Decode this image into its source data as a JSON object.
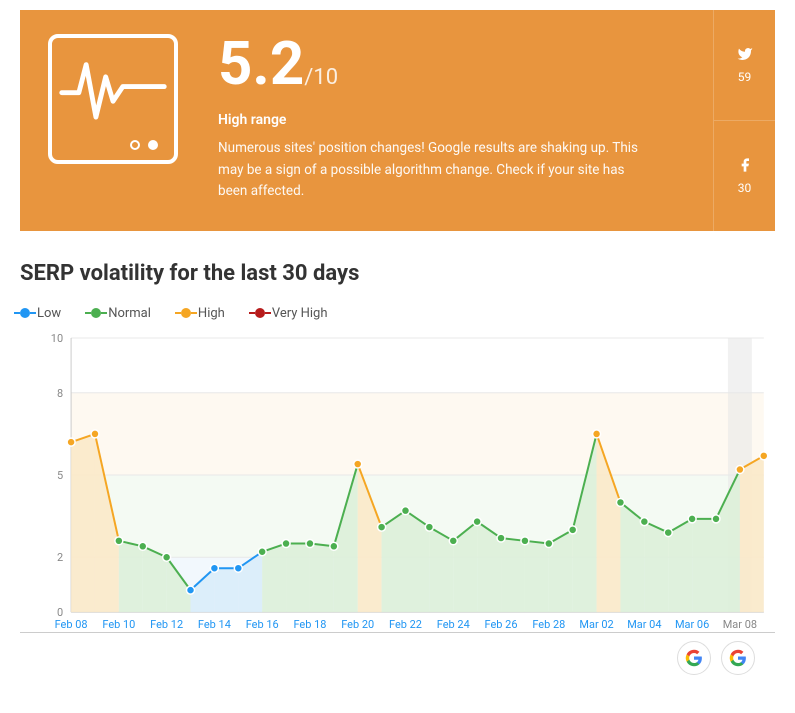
{
  "hero": {
    "score": "5.2",
    "max": "/10",
    "range_label": "High range",
    "description": "Numerous sites' position changes! Google results are shaking up. This may be a sign of a possible algorithm change. Check if your site has been affected.",
    "bg_color": "#e8953e",
    "social": {
      "twitter_count": "59",
      "facebook_count": "30"
    }
  },
  "chart": {
    "title": "SERP volatility for the last 30 days",
    "type": "line-area",
    "legend": [
      {
        "label": "Low",
        "color": "#2196f3"
      },
      {
        "label": "Normal",
        "color": "#4caf50"
      },
      {
        "label": "High",
        "color": "#f5a623"
      },
      {
        "label": "Very High",
        "color": "#b71c1c"
      }
    ],
    "ylim": [
      0,
      10
    ],
    "yticks": [
      0,
      2,
      5,
      8,
      10
    ],
    "ybands": [
      {
        "label": "Low",
        "from": 0,
        "to": 2,
        "fill": "#e6f2fb"
      },
      {
        "label": "Normal",
        "from": 2,
        "to": 5,
        "fill": "#e9f5e8"
      },
      {
        "label": "High",
        "from": 5,
        "to": 8,
        "fill": "#fdf3e3"
      },
      {
        "label": "Very High",
        "from": 8,
        "to": 10,
        "fill": "#ffffff"
      }
    ],
    "x_labels": [
      "Feb 08",
      "Feb 10",
      "Feb 12",
      "Feb 14",
      "Feb 16",
      "Feb 18",
      "Feb 20",
      "Feb 22",
      "Feb 24",
      "Feb 26",
      "Feb 28",
      "Mar 02",
      "Mar 04",
      "Mar 06",
      "Mar 08"
    ],
    "today_label": "Mar 08",
    "points": [
      {
        "x": "Feb 08",
        "y": 6.2,
        "cat": "High"
      },
      {
        "x": "Feb 09",
        "y": 6.5,
        "cat": "High"
      },
      {
        "x": "Feb 10",
        "y": 2.6,
        "cat": "Normal"
      },
      {
        "x": "Feb 11",
        "y": 2.4,
        "cat": "Normal"
      },
      {
        "x": "Feb 12",
        "y": 2.0,
        "cat": "Normal"
      },
      {
        "x": "Feb 13",
        "y": 0.8,
        "cat": "Low"
      },
      {
        "x": "Feb 14",
        "y": 1.6,
        "cat": "Low"
      },
      {
        "x": "Feb 15",
        "y": 1.6,
        "cat": "Low"
      },
      {
        "x": "Feb 16",
        "y": 2.2,
        "cat": "Normal"
      },
      {
        "x": "Feb 17",
        "y": 2.5,
        "cat": "Normal"
      },
      {
        "x": "Feb 18",
        "y": 2.5,
        "cat": "Normal"
      },
      {
        "x": "Feb 19",
        "y": 2.4,
        "cat": "Normal"
      },
      {
        "x": "Feb 20",
        "y": 5.4,
        "cat": "High"
      },
      {
        "x": "Feb 21",
        "y": 3.1,
        "cat": "Normal"
      },
      {
        "x": "Feb 22",
        "y": 3.7,
        "cat": "Normal"
      },
      {
        "x": "Feb 23",
        "y": 3.1,
        "cat": "Normal"
      },
      {
        "x": "Feb 24",
        "y": 2.6,
        "cat": "Normal"
      },
      {
        "x": "Feb 25",
        "y": 3.3,
        "cat": "Normal"
      },
      {
        "x": "Feb 26",
        "y": 2.7,
        "cat": "Normal"
      },
      {
        "x": "Feb 27",
        "y": 2.6,
        "cat": "Normal"
      },
      {
        "x": "Feb 28",
        "y": 2.5,
        "cat": "Normal"
      },
      {
        "x": "Mar 01",
        "y": 3.0,
        "cat": "Normal"
      },
      {
        "x": "Mar 02",
        "y": 6.5,
        "cat": "High"
      },
      {
        "x": "Mar 03",
        "y": 4.0,
        "cat": "Normal"
      },
      {
        "x": "Mar 04",
        "y": 3.3,
        "cat": "Normal"
      },
      {
        "x": "Mar 05",
        "y": 2.9,
        "cat": "Normal"
      },
      {
        "x": "Mar 06",
        "y": 3.4,
        "cat": "Normal"
      },
      {
        "x": "Mar 07",
        "y": 3.4,
        "cat": "Normal"
      },
      {
        "x": "Mar 08",
        "y": 5.2,
        "cat": "High"
      },
      {
        "x": "Mar 09",
        "y": 5.7,
        "cat": "High"
      }
    ],
    "marker_radius": 4,
    "line_width": 2,
    "area_colors": {
      "Low": "#d9ecfa",
      "Normal": "#ddf0d9",
      "High": "#fbe9c9",
      "Very High": "#f6d7d7"
    },
    "grid_color": "#e8e8e8",
    "axis_color": "#cccccc",
    "xlabel_color": "#2196f3",
    "today_band_color": "#e8e8e8"
  }
}
